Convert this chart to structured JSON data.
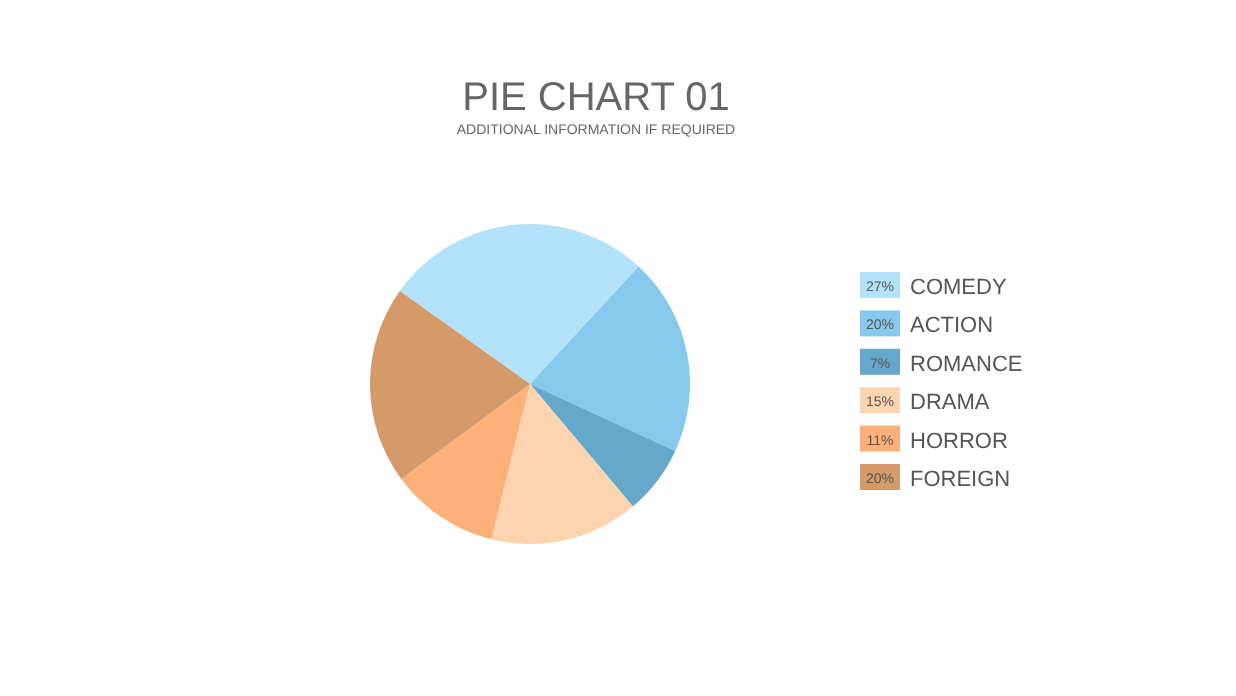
{
  "chart_data": {
    "type": "pie",
    "title": "PIE CHART 01",
    "subtitle": "ADDITIONAL INFORMATION IF REQUIRED",
    "categories": [
      "COMEDY",
      "ACTION",
      "ROMANCE",
      "DRAMA",
      "HORROR",
      "FOREIGN"
    ],
    "values": [
      27,
      20,
      7,
      15,
      11,
      20
    ],
    "colors": [
      "#b3e3fa",
      "#86c9ec",
      "#66a8cc",
      "#fdd4b0",
      "#fdb07a",
      "#d49a6a"
    ],
    "value_labels": [
      "27%",
      "20%",
      "7%",
      "15%",
      "11%",
      "20%"
    ],
    "legend": "right"
  }
}
